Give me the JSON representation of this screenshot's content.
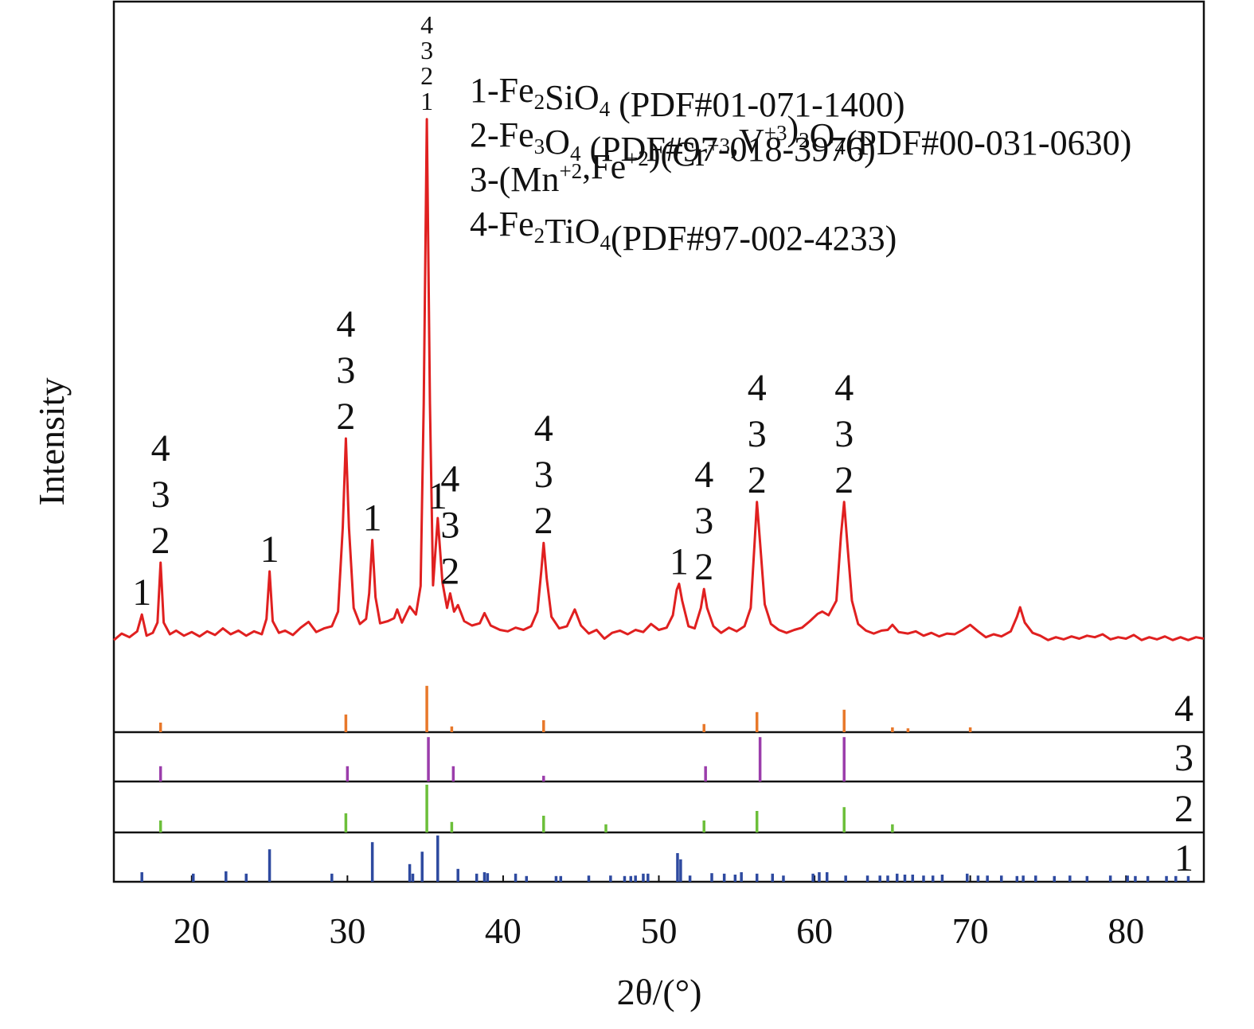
{
  "chart_data": {
    "type": "xrd",
    "xlabel": "2θ/(°)",
    "ylabel": "Intensity",
    "xlim": [
      15,
      85
    ],
    "xticks": [
      20,
      30,
      40,
      50,
      60,
      70,
      80
    ],
    "ylim": [
      0,
      100
    ],
    "series": [
      {
        "color": "#e02020",
        "x": [
          15,
          15.5,
          16,
          16.5,
          16.8,
          17.1,
          17.5,
          17.8,
          18.0,
          18.2,
          18.6,
          19,
          19.5,
          20,
          20.5,
          21,
          21.5,
          22,
          22.5,
          23,
          23.5,
          24,
          24.5,
          24.8,
          25.0,
          25.2,
          25.6,
          26,
          26.5,
          27,
          27.5,
          28,
          28.5,
          29,
          29.4,
          29.7,
          29.9,
          30.1,
          30.4,
          30.8,
          31.2,
          31.4,
          31.6,
          31.8,
          32.1,
          32.6,
          33.0,
          33.2,
          33.5,
          34.0,
          34.4,
          34.7,
          34.9,
          35.1,
          35.3,
          35.5,
          35.8,
          36.1,
          36.4,
          36.6,
          36.85,
          37.1,
          37.5,
          38,
          38.5,
          38.8,
          39.2,
          39.8,
          40.3,
          40.8,
          41.3,
          41.8,
          42.2,
          42.45,
          42.6,
          42.8,
          43.1,
          43.6,
          44.1,
          44.6,
          45.0,
          45.5,
          46,
          46.5,
          47,
          47.5,
          48,
          48.5,
          49,
          49.5,
          50,
          50.5,
          50.9,
          51.15,
          51.3,
          51.5,
          51.9,
          52.3,
          52.7,
          52.9,
          53.1,
          53.5,
          54,
          54.5,
          55,
          55.5,
          55.9,
          56.15,
          56.3,
          56.5,
          56.8,
          57.2,
          57.7,
          58.2,
          58.7,
          59.2,
          59.7,
          60.2,
          60.5,
          60.9,
          61.4,
          61.7,
          61.9,
          62.1,
          62.4,
          62.8,
          63.3,
          63.8,
          64.3,
          64.7,
          65.0,
          65.4,
          66,
          66.5,
          67,
          67.5,
          68,
          68.5,
          69,
          69.5,
          70.0,
          70.5,
          71,
          71.5,
          72,
          72.6,
          73.0,
          73.2,
          73.5,
          74,
          74.5,
          75,
          75.5,
          76,
          76.5,
          77,
          77.5,
          78,
          78.5,
          79,
          79.5,
          80,
          80.5,
          81,
          81.5,
          82,
          82.5,
          83,
          83.5,
          84,
          84.5,
          85
        ],
        "values": [
          12.6,
          13.5,
          13.0,
          13.8,
          16.1,
          13.2,
          13.6,
          15,
          23.2,
          15,
          13.4,
          13.9,
          13.2,
          13.7,
          13.1,
          13.8,
          13.3,
          14.2,
          13.4,
          13.9,
          13.2,
          13.8,
          13.4,
          15.5,
          22.0,
          15.2,
          13.6,
          13.9,
          13.3,
          14.3,
          15.1,
          13.7,
          14.2,
          14.5,
          16.5,
          28,
          40.2,
          28,
          17,
          14.8,
          15.5,
          19,
          26.3,
          18.5,
          14.9,
          15.2,
          15.6,
          16.8,
          15.0,
          17.2,
          16.1,
          20,
          45,
          83.9,
          45,
          20.1,
          29.3,
          20.5,
          17,
          19.0,
          16.5,
          17.4,
          15.2,
          14.6,
          14.9,
          16.3,
          14.6,
          14.0,
          13.8,
          14.3,
          14.0,
          14.5,
          16.5,
          22,
          25.9,
          21,
          15.8,
          14.2,
          14.5,
          16.8,
          14.6,
          13.5,
          14.0,
          12.8,
          13.6,
          13.9,
          13.4,
          14.0,
          13.7,
          14.8,
          14.0,
          14.3,
          16,
          19.5,
          20.3,
          18,
          14.5,
          14.2,
          17.0,
          19.6,
          17,
          14.5,
          13.6,
          14.3,
          13.8,
          14.5,
          17,
          26,
          31.5,
          26,
          17.5,
          14.8,
          14.0,
          13.6,
          14.0,
          14.3,
          15.2,
          16.2,
          16.5,
          16.0,
          18,
          27,
          31.5,
          26,
          18,
          14.8,
          13.9,
          13.5,
          13.9,
          14.0,
          14.7,
          13.7,
          13.5,
          13.8,
          13.2,
          13.6,
          13.1,
          13.5,
          13.4,
          14.0,
          14.7,
          13.8,
          13.0,
          13.4,
          13.1,
          13.8,
          15.8,
          17.1,
          15.0,
          13.6,
          13.2,
          12.6,
          13.0,
          12.7,
          13.1,
          12.8,
          13.2,
          13.0,
          13.4,
          12.7,
          13.0,
          12.8,
          13.3,
          12.6,
          13.0,
          12.7,
          13.1,
          12.6,
          13.0,
          12.6,
          13.0,
          12.8
        ]
      }
    ],
    "annotations": [
      {
        "x": 16.8,
        "labels": [
          "1"
        ]
      },
      {
        "x": 18.0,
        "labels": [
          "4",
          "3",
          "2"
        ]
      },
      {
        "x": 25.0,
        "labels": [
          "1"
        ]
      },
      {
        "x": 29.9,
        "labels": [
          "4",
          "3",
          "2"
        ]
      },
      {
        "x": 31.6,
        "labels": [
          "1"
        ]
      },
      {
        "x": 35.1,
        "labels": [
          "4",
          "3",
          "2",
          "1"
        ]
      },
      {
        "x": 35.8,
        "labels": [
          "1"
        ]
      },
      {
        "x": 36.6,
        "labels": [
          "4",
          "3",
          "2"
        ]
      },
      {
        "x": 42.6,
        "labels": [
          "4",
          "3",
          "2"
        ]
      },
      {
        "x": 51.3,
        "labels": [
          "1"
        ]
      },
      {
        "x": 52.9,
        "labels": [
          "4",
          "3",
          "2"
        ]
      },
      {
        "x": 56.3,
        "labels": [
          "4",
          "3",
          "2"
        ]
      },
      {
        "x": 61.9,
        "labels": [
          "4",
          "3",
          "2"
        ]
      }
    ],
    "legend": [
      [
        {
          "text": "1-Fe"
        },
        {
          "text": "2",
          "sub": true
        },
        {
          "text": "SiO"
        },
        {
          "text": "4",
          "sub": true
        },
        {
          "text": " (PDF#01-071-1400)"
        }
      ],
      [
        {
          "text": "2-Fe"
        },
        {
          "text": "3",
          "sub": true
        },
        {
          "text": "O"
        },
        {
          "text": "4",
          "sub": true
        },
        {
          "text": " (PDF#97-018-3976)"
        }
      ],
      [
        {
          "text": "3-(Mn"
        },
        {
          "text": "+2",
          "sup": true
        },
        {
          "text": ",Fe"
        },
        {
          "text": "+2",
          "sup": true
        },
        {
          "text": ")(Cr"
        },
        {
          "text": "+3",
          "sup": true
        },
        {
          "text": ",V"
        },
        {
          "text": "+3",
          "sup": true
        },
        {
          "text": ")"
        },
        {
          "text": "2",
          "sub": true
        },
        {
          "text": "O"
        },
        {
          "text": "4",
          "sub": true
        },
        {
          "text": "(PDF#00-031-0630)"
        }
      ],
      [
        {
          "text": "4-Fe"
        },
        {
          "text": "2",
          "sub": true
        },
        {
          "text": "TiO"
        },
        {
          "text": "4",
          "sub": true
        },
        {
          "text": "(PDF#97-002-4233)"
        }
      ]
    ],
    "reference_ylim": [
      0,
      100
    ],
    "references": [
      {
        "label": "4",
        "color": "#e8782a",
        "positions": [
          18.0,
          29.9,
          35.1,
          36.7,
          42.6,
          52.9,
          56.3,
          61.9,
          65.0,
          66.0,
          70.0
        ],
        "values": [
          20,
          37,
          97,
          12,
          25,
          17,
          42,
          47,
          10,
          8,
          10
        ]
      },
      {
        "label": "3",
        "color": "#9b3dab",
        "positions": [
          18.0,
          30.0,
          35.2,
          36.8,
          42.6,
          53.0,
          56.5,
          61.9
        ],
        "values": [
          32,
          32,
          93,
          32,
          12,
          32,
          93,
          93
        ]
      },
      {
        "label": "2",
        "color": "#6cbf3a",
        "positions": [
          18.0,
          29.9,
          35.1,
          36.7,
          42.6,
          46.6,
          52.9,
          56.3,
          61.9,
          65.0
        ],
        "values": [
          25,
          40,
          100,
          22,
          35,
          17,
          25,
          45,
          53,
          17
        ]
      },
      {
        "label": "1",
        "color": "#2e4aa0",
        "positions": [
          16.8,
          20.1,
          22.2,
          23.5,
          25.0,
          29.0,
          31.6,
          34.0,
          34.2,
          34.8,
          35.8,
          37.1,
          38.3,
          38.8,
          39.0,
          40.8,
          41.5,
          43.4,
          43.7,
          45.5,
          46.9,
          47.8,
          48.2,
          48.5,
          49.0,
          49.3,
          51.2,
          51.4,
          52.0,
          53.4,
          54.2,
          54.9,
          55.3,
          56.3,
          57.3,
          58.0,
          59.9,
          60.3,
          60.8,
          62.0,
          63.4,
          64.2,
          64.7,
          65.3,
          65.8,
          66.3,
          67.0,
          67.6,
          68.2,
          69.8,
          70.5,
          71.1,
          72.0,
          73.0,
          73.4,
          74.2,
          75.4,
          76.4,
          77.5,
          79.0,
          80.1,
          80.6,
          81.4,
          82.6,
          83.2,
          84.0
        ],
        "values": [
          20,
          17,
          22,
          17,
          68,
          17,
          83,
          37,
          17,
          63,
          97,
          27,
          17,
          20,
          18,
          17,
          12,
          12,
          12,
          13,
          13,
          12,
          12,
          13,
          17,
          17,
          60,
          47,
          13,
          18,
          17,
          15,
          20,
          17,
          17,
          13,
          17,
          20,
          20,
          13,
          13,
          13,
          13,
          17,
          15,
          15,
          13,
          13,
          15,
          17,
          13,
          13,
          13,
          12,
          13,
          13,
          12,
          13,
          12,
          13,
          13,
          12,
          12,
          12,
          12,
          12
        ]
      }
    ]
  }
}
